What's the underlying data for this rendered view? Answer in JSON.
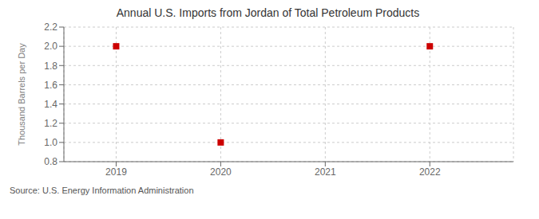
{
  "chart_data": {
    "type": "scatter",
    "title": "Annual U.S. Imports from Jordan of Total Petroleum Products",
    "y_label": "Thousand Barrels per Day",
    "annotations": [
      "Source: U.S. Energy Information Administration"
    ],
    "x": [
      2019,
      2020,
      2022
    ],
    "values": [
      2.0,
      1.0,
      2.0
    ],
    "color": "#cc0000",
    "marker": "square",
    "xlim": [
      2018.5,
      2022.8
    ],
    "ylim": [
      0.8,
      2.2
    ],
    "xticks": [
      2019,
      2020,
      2021,
      2022
    ],
    "yticks": [
      0.8,
      {
        "value": 1.0,
        "label": "1.0"
      },
      1.2,
      1.4,
      1.6,
      1.8,
      {
        "value": 2.0,
        "label": "2.0"
      },
      2.2
    ],
    "grid": true
  }
}
